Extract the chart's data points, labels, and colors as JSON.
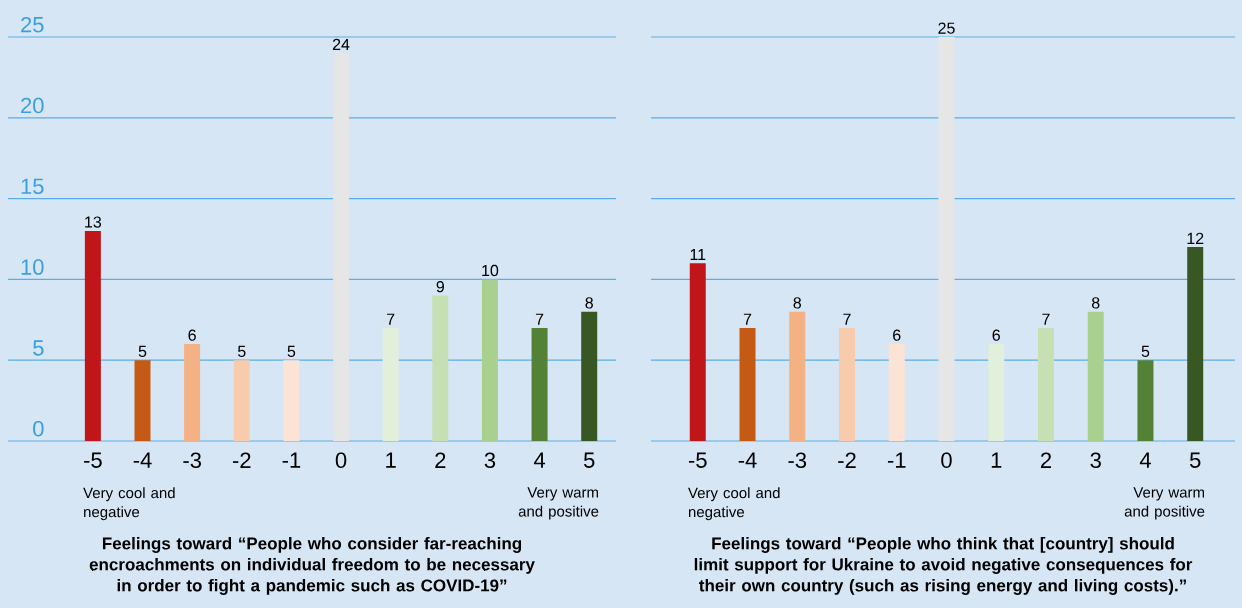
{
  "chart_data": [
    {
      "type": "bar",
      "categories": [
        "-5",
        "-4",
        "-3",
        "-2",
        "-1",
        "0",
        "1",
        "2",
        "3",
        "4",
        "5"
      ],
      "values": [
        13,
        5,
        6,
        5,
        5,
        24,
        7,
        9,
        10,
        7,
        8
      ],
      "colors": [
        "#c0161a",
        "#c55a14",
        "#f4b183",
        "#f8cbad",
        "#fbe4d5",
        "#e7e6e6",
        "#e2efda",
        "#c6e0b4",
        "#a9d08e",
        "#538135",
        "#385723"
      ],
      "ylim": [
        0,
        25
      ],
      "yticks": [
        0,
        5,
        10,
        15,
        20,
        25
      ],
      "grid": "y",
      "data_labels": true,
      "xlabel": "Feelings toward “People who consider far-reaching encroachments on individual freedom to be necessary in order to fight a pandemic such as COVID-19”",
      "annotations": [
        "Very cool and negative",
        "Very warm and positive"
      ]
    },
    {
      "type": "bar",
      "categories": [
        "-5",
        "-4",
        "-3",
        "-2",
        "-1",
        "0",
        "1",
        "2",
        "3",
        "4",
        "5"
      ],
      "values": [
        11,
        7,
        8,
        7,
        6,
        25,
        6,
        7,
        8,
        5,
        12
      ],
      "colors": [
        "#c0161a",
        "#c55a14",
        "#f4b183",
        "#f8cbad",
        "#fbe4d5",
        "#e7e6e6",
        "#e2efda",
        "#c6e0b4",
        "#a9d08e",
        "#538135",
        "#385723"
      ],
      "ylim": [
        0,
        25
      ],
      "yticks": [
        0,
        5,
        10,
        15,
        20,
        25
      ],
      "grid": "y",
      "data_labels": true,
      "tick_labels": "x",
      "xlabel": "Feelings toward “People who think that [country] should limit support for Ukraine to avoid negative consequences for their own country (such as rising energy and living costs).”",
      "annotations": [
        "Very cool and negative",
        "Very warm and positive"
      ]
    }
  ]
}
